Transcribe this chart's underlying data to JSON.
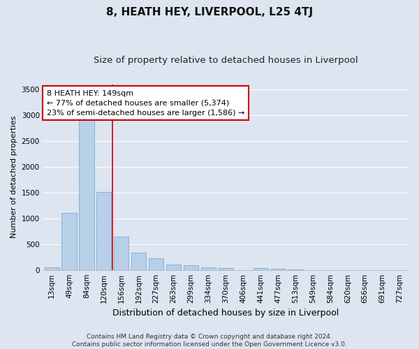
{
  "title": "8, HEATH HEY, LIVERPOOL, L25 4TJ",
  "subtitle": "Size of property relative to detached houses in Liverpool",
  "xlabel": "Distribution of detached houses by size in Liverpool",
  "ylabel": "Number of detached properties",
  "categories": [
    "13sqm",
    "49sqm",
    "84sqm",
    "120sqm",
    "156sqm",
    "192sqm",
    "227sqm",
    "263sqm",
    "299sqm",
    "334sqm",
    "370sqm",
    "406sqm",
    "441sqm",
    "477sqm",
    "513sqm",
    "549sqm",
    "584sqm",
    "620sqm",
    "656sqm",
    "691sqm",
    "727sqm"
  ],
  "values": [
    50,
    1100,
    2920,
    1510,
    640,
    340,
    230,
    100,
    85,
    50,
    35,
    0,
    30,
    20,
    15,
    0,
    0,
    0,
    0,
    0,
    0
  ],
  "bar_color": "#b8cfe8",
  "bar_edge_color": "#7aadd4",
  "vline_x_pos": 3.48,
  "vline_color": "#cc0000",
  "annotation_text": "8 HEATH HEY: 149sqm\n← 77% of detached houses are smaller (5,374)\n23% of semi-detached houses are larger (1,586) →",
  "annotation_box_facecolor": "white",
  "annotation_box_edgecolor": "#cc0000",
  "ylim": [
    0,
    3600
  ],
  "yticks": [
    0,
    500,
    1000,
    1500,
    2000,
    2500,
    3000,
    3500
  ],
  "footer_line1": "Contains HM Land Registry data © Crown copyright and database right 2024.",
  "footer_line2": "Contains public sector information licensed under the Open Government Licence v3.0.",
  "background_color": "#dde5f0",
  "plot_background_color": "#dde5f0",
  "title_fontsize": 11,
  "subtitle_fontsize": 9.5,
  "xlabel_fontsize": 9,
  "ylabel_fontsize": 8,
  "tick_fontsize": 7.5,
  "annotation_fontsize": 8,
  "footer_fontsize": 6.5
}
